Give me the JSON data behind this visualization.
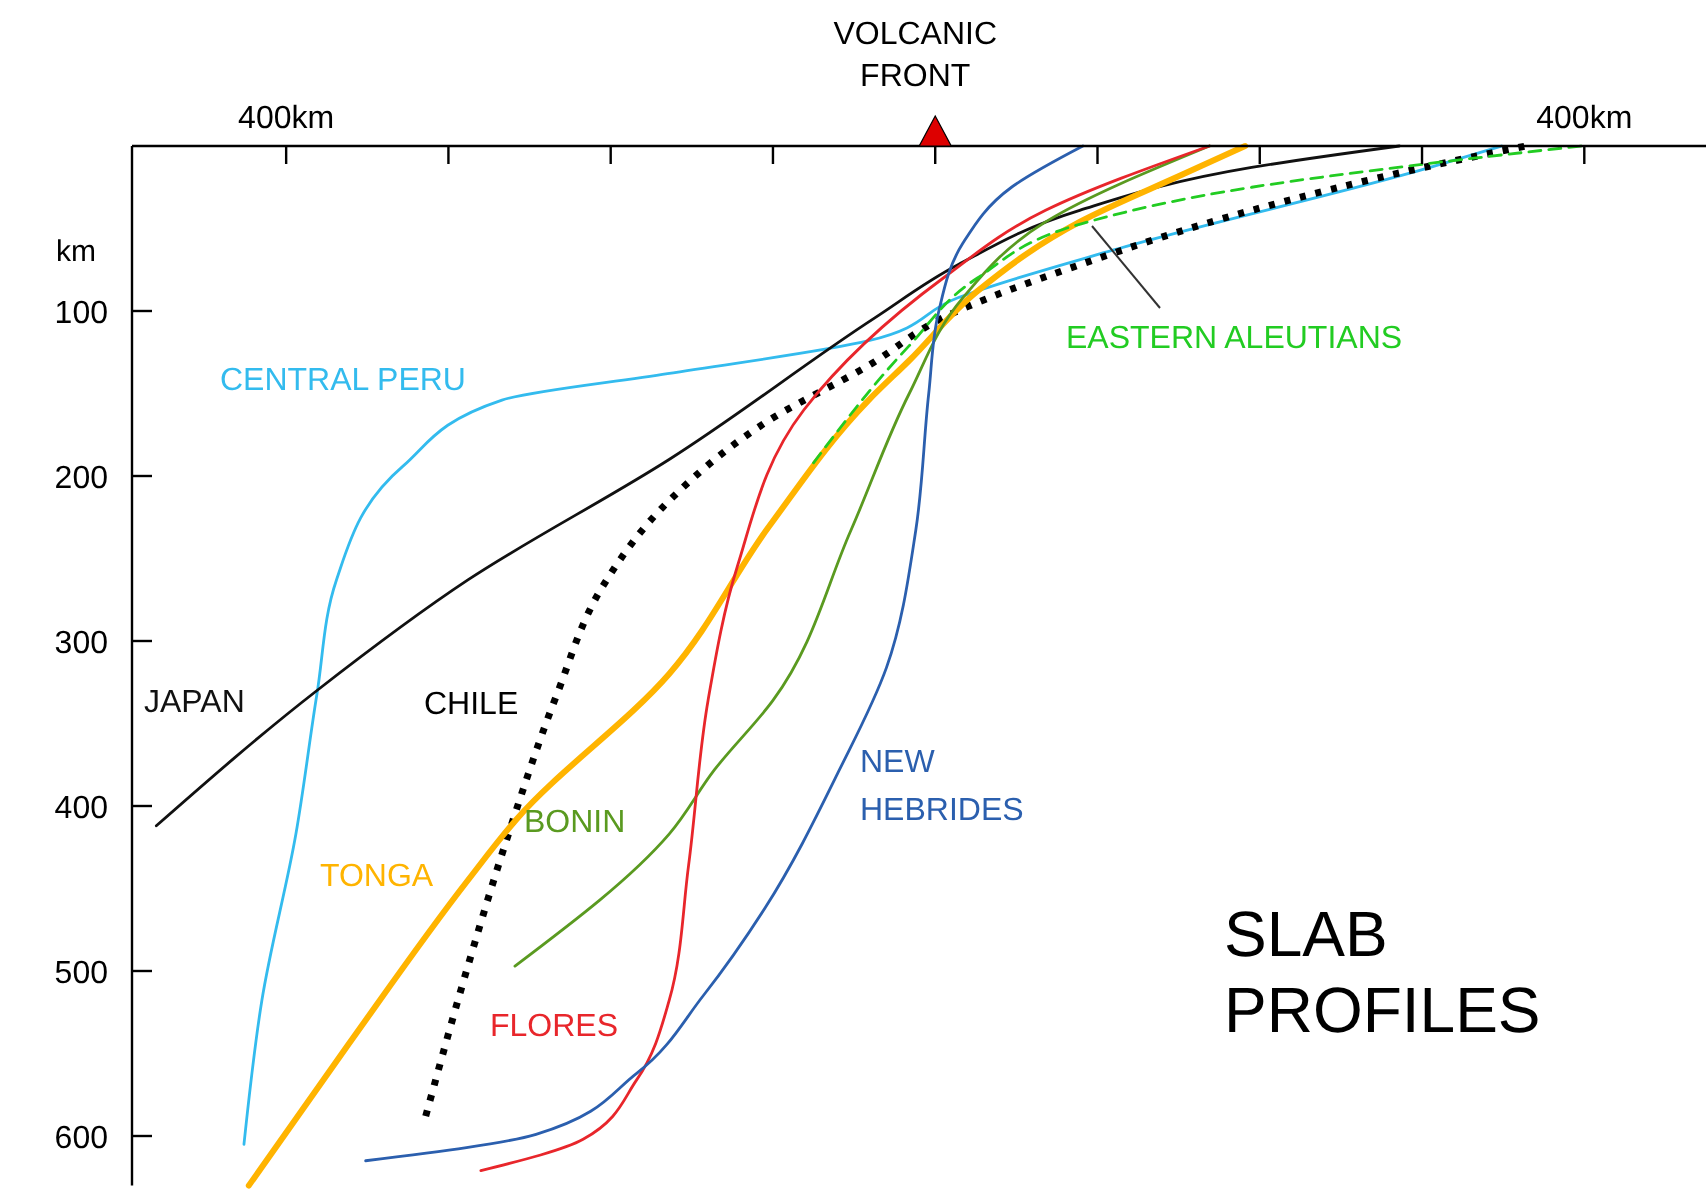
{
  "chart_data": {
    "type": "line",
    "title": "SLAB PROFILES",
    "ylabel": "km",
    "xlim": [
      -495,
      475
    ],
    "xticks": [
      {
        "value": -400,
        "label": "400km"
      },
      {
        "value": -300,
        "label": null
      },
      {
        "value": -200,
        "label": null
      },
      {
        "value": -100,
        "label": null
      },
      {
        "value": 0,
        "label": null
      },
      {
        "value": 100,
        "label": null
      },
      {
        "value": 200,
        "label": null
      },
      {
        "value": 300,
        "label": null
      },
      {
        "value": 400,
        "label": "400km"
      }
    ],
    "ylim": [
      630,
      0
    ],
    "yticks": [
      100,
      200,
      300,
      400,
      500,
      600
    ],
    "grid": false,
    "annotations": [
      "VOLCANIC FRONT"
    ],
    "series": [
      {
        "name": "CENTRAL PERU",
        "color": "#33bbee",
        "line_style": "solid",
        "x": [
          -426,
          -415,
          -394,
          -381,
          -369,
          -328,
          -267,
          -165,
          -41,
          14,
          110,
          305,
          349
        ],
        "values": [
          605,
          518,
          417,
          332,
          263,
          194,
          154,
          138,
          118,
          92,
          63,
          13,
          0
        ]
      },
      {
        "name": "JAPAN",
        "color": "#111111",
        "line_style": "solid",
        "x": [
          -480,
          -381,
          -288,
          -164,
          -37,
          14,
          89,
          195,
          286
        ],
        "values": [
          412,
          330,
          263,
          190,
          104,
          72,
          39,
          13,
          0
        ]
      },
      {
        "name": "CHILE",
        "color": "#000000",
        "line_style": "dotted",
        "x": [
          -314,
          -288,
          -263,
          -233,
          -205,
          -164,
          -102,
          -41,
          5,
          89,
          195,
          301,
          364
        ],
        "values": [
          588,
          497,
          417,
          332,
          267,
          215,
          166,
          133,
          104,
          72,
          39,
          13,
          0
        ]
      },
      {
        "name": "TONGA",
        "color": "#ffb400",
        "line_style": "solid",
        "x": [
          -423,
          -362,
          -288,
          -258,
          -164,
          -102,
          -41,
          -16,
          26,
          89,
          153,
          191
        ],
        "values": [
          630,
          545,
          445,
          408,
          320,
          230,
          154,
          130,
          88,
          46,
          17,
          0
        ]
      },
      {
        "name": "BONIN",
        "color": "#5a9a20",
        "line_style": "solid",
        "x": [
          -259,
          -164,
          -136,
          -100,
          -52,
          -16,
          17,
          68,
          169
        ],
        "values": [
          497,
          417,
          378,
          336,
          233,
          150,
          92,
          46,
          0
        ]
      },
      {
        "name": "FLORES",
        "color": "#e8262b",
        "line_style": "solid",
        "x": [
          -280,
          -217,
          -184,
          -164,
          -152,
          -140,
          -122,
          -81,
          5,
          68,
          169
        ],
        "values": [
          621,
          602,
          566,
          518,
          436,
          336,
          255,
          160,
          80,
          39,
          0
        ]
      },
      {
        "name": "NEW HEBRIDES",
        "color": "#2b5fae",
        "line_style": "solid",
        "x": [
          -351,
          -246,
          -184,
          -143,
          -105,
          -59,
          -30,
          -12,
          -4,
          2,
          17,
          47,
          91
        ],
        "values": [
          615,
          599,
          562,
          515,
          462,
          378,
          316,
          233,
          150,
          101,
          59,
          25,
          0
        ]
      },
      {
        "name": "EASTERN ALEUTIANS",
        "color": "#22cc22",
        "line_style": "dashed",
        "x": [
          -75,
          -16,
          26,
          94,
          195,
          301,
          398
        ],
        "values": [
          192,
          121,
          80,
          46,
          25,
          11,
          0
        ]
      }
    ]
  }
}
